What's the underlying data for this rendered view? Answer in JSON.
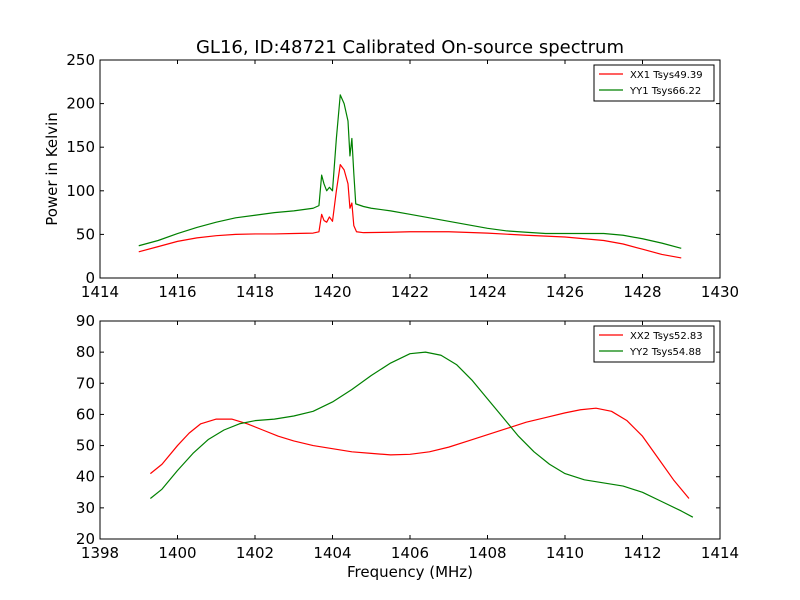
{
  "figure": {
    "title": "GL16, ID:48721 Calibrated On-source spectrum",
    "xlabel": "Frequency (MHz)",
    "ylabel": "Power in Kelvin"
  },
  "colors": {
    "red": "#ff0000",
    "green": "#008000"
  },
  "chart_data": [
    {
      "type": "line",
      "title": "GL16, ID:48721 Calibrated On-source spectrum",
      "xlabel": "",
      "ylabel": "Power in Kelvin",
      "xlim": [
        1414,
        1430
      ],
      "ylim": [
        0,
        250
      ],
      "xticks": [
        1414,
        1416,
        1418,
        1420,
        1422,
        1424,
        1426,
        1428,
        1430
      ],
      "yticks": [
        0,
        50,
        100,
        150,
        200,
        250
      ],
      "legend_position": "top-right",
      "series": [
        {
          "name": "XX1 Tsys49.39",
          "color": "#ff0000",
          "points": [
            [
              1415.0,
              30
            ],
            [
              1415.5,
              36
            ],
            [
              1416.0,
              42
            ],
            [
              1416.5,
              46
            ],
            [
              1417.0,
              48.5
            ],
            [
              1417.5,
              50
            ],
            [
              1418.0,
              50.5
            ],
            [
              1418.5,
              50.5
            ],
            [
              1419.0,
              51
            ],
            [
              1419.5,
              51.5
            ],
            [
              1419.65,
              53
            ],
            [
              1419.72,
              73
            ],
            [
              1419.78,
              66
            ],
            [
              1419.85,
              64
            ],
            [
              1419.92,
              70
            ],
            [
              1420.0,
              65
            ],
            [
              1420.1,
              100
            ],
            [
              1420.2,
              130
            ],
            [
              1420.3,
              124
            ],
            [
              1420.4,
              108
            ],
            [
              1420.45,
              80
            ],
            [
              1420.5,
              86
            ],
            [
              1420.55,
              60
            ],
            [
              1420.62,
              53
            ],
            [
              1420.8,
              52
            ],
            [
              1421.5,
              52.5
            ],
            [
              1422.0,
              53
            ],
            [
              1423.0,
              53
            ],
            [
              1424.0,
              51.5
            ],
            [
              1425.0,
              49
            ],
            [
              1426.0,
              47
            ],
            [
              1427.0,
              43
            ],
            [
              1427.5,
              39
            ],
            [
              1428.0,
              33
            ],
            [
              1428.5,
              27
            ],
            [
              1429.0,
              23
            ]
          ]
        },
        {
          "name": "YY1 Tsys66.22",
          "color": "#008000",
          "points": [
            [
              1415.0,
              37
            ],
            [
              1415.5,
              43
            ],
            [
              1416.0,
              51
            ],
            [
              1416.5,
              58
            ],
            [
              1417.0,
              64
            ],
            [
              1417.5,
              69
            ],
            [
              1418.0,
              72
            ],
            [
              1418.5,
              75
            ],
            [
              1419.0,
              77
            ],
            [
              1419.5,
              80
            ],
            [
              1419.65,
              83
            ],
            [
              1419.72,
              118
            ],
            [
              1419.78,
              108
            ],
            [
              1419.85,
              100
            ],
            [
              1419.92,
              104
            ],
            [
              1420.0,
              100
            ],
            [
              1420.1,
              160
            ],
            [
              1420.2,
              210
            ],
            [
              1420.3,
              200
            ],
            [
              1420.4,
              180
            ],
            [
              1420.45,
              140
            ],
            [
              1420.5,
              160
            ],
            [
              1420.55,
              120
            ],
            [
              1420.6,
              85
            ],
            [
              1420.8,
              82
            ],
            [
              1421.0,
              80
            ],
            [
              1421.5,
              77
            ],
            [
              1422.0,
              73
            ],
            [
              1422.5,
              69
            ],
            [
              1423.0,
              65
            ],
            [
              1423.5,
              61
            ],
            [
              1424.0,
              57
            ],
            [
              1424.5,
              54
            ],
            [
              1425.0,
              52.5
            ],
            [
              1425.5,
              51
            ],
            [
              1426.0,
              51
            ],
            [
              1426.5,
              51
            ],
            [
              1427.0,
              51
            ],
            [
              1427.5,
              49
            ],
            [
              1428.0,
              45
            ],
            [
              1428.5,
              40
            ],
            [
              1429.0,
              34
            ]
          ]
        }
      ]
    },
    {
      "type": "line",
      "title": "",
      "xlabel": "Frequency (MHz)",
      "ylabel": "",
      "xlim": [
        1398,
        1414
      ],
      "ylim": [
        20,
        90
      ],
      "xticks": [
        1398,
        1400,
        1402,
        1404,
        1406,
        1408,
        1410,
        1412,
        1414
      ],
      "yticks": [
        20,
        30,
        40,
        50,
        60,
        70,
        80,
        90
      ],
      "legend_position": "top-right",
      "series": [
        {
          "name": "XX2 Tsys52.83",
          "color": "#ff0000",
          "points": [
            [
              1399.3,
              41
            ],
            [
              1399.6,
              44
            ],
            [
              1400.0,
              50
            ],
            [
              1400.3,
              54
            ],
            [
              1400.6,
              57
            ],
            [
              1401.0,
              58.5
            ],
            [
              1401.4,
              58.5
            ],
            [
              1401.8,
              57
            ],
            [
              1402.2,
              55
            ],
            [
              1402.6,
              53
            ],
            [
              1403.0,
              51.5
            ],
            [
              1403.5,
              50
            ],
            [
              1404.0,
              49
            ],
            [
              1404.5,
              48
            ],
            [
              1405.0,
              47.5
            ],
            [
              1405.5,
              47
            ],
            [
              1406.0,
              47.2
            ],
            [
              1406.5,
              48
            ],
            [
              1407.0,
              49.5
            ],
            [
              1407.5,
              51.5
            ],
            [
              1408.0,
              53.5
            ],
            [
              1408.5,
              55.5
            ],
            [
              1409.0,
              57.5
            ],
            [
              1409.5,
              59
            ],
            [
              1410.0,
              60.5
            ],
            [
              1410.4,
              61.5
            ],
            [
              1410.8,
              62
            ],
            [
              1411.2,
              61
            ],
            [
              1411.6,
              58
            ],
            [
              1412.0,
              53
            ],
            [
              1412.4,
              46
            ],
            [
              1412.8,
              39
            ],
            [
              1413.2,
              33
            ]
          ]
        },
        {
          "name": "YY2 Tsys54.88",
          "color": "#008000",
          "points": [
            [
              1399.3,
              33
            ],
            [
              1399.6,
              36
            ],
            [
              1400.0,
              42
            ],
            [
              1400.4,
              47.5
            ],
            [
              1400.8,
              52
            ],
            [
              1401.2,
              55
            ],
            [
              1401.6,
              57
            ],
            [
              1402.0,
              58
            ],
            [
              1402.5,
              58.5
            ],
            [
              1403.0,
              59.5
            ],
            [
              1403.5,
              61
            ],
            [
              1404.0,
              64
            ],
            [
              1404.5,
              68
            ],
            [
              1405.0,
              72.5
            ],
            [
              1405.5,
              76.5
            ],
            [
              1406.0,
              79.5
            ],
            [
              1406.4,
              80
            ],
            [
              1406.8,
              79
            ],
            [
              1407.2,
              76
            ],
            [
              1407.6,
              71
            ],
            [
              1408.0,
              65
            ],
            [
              1408.4,
              59
            ],
            [
              1408.8,
              53
            ],
            [
              1409.2,
              48
            ],
            [
              1409.6,
              44
            ],
            [
              1410.0,
              41
            ],
            [
              1410.5,
              39
            ],
            [
              1411.0,
              38
            ],
            [
              1411.5,
              37
            ],
            [
              1412.0,
              35
            ],
            [
              1412.5,
              32
            ],
            [
              1413.0,
              29
            ],
            [
              1413.3,
              27
            ]
          ]
        }
      ]
    }
  ]
}
